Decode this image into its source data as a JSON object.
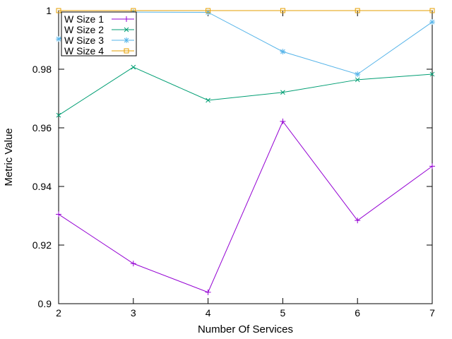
{
  "chart_data": {
    "type": "line",
    "title": "",
    "xlabel": "Number Of Services",
    "ylabel": "Metric Value",
    "x": [
      2,
      3,
      4,
      5,
      6,
      7
    ],
    "xlim": [
      2,
      7
    ],
    "ylim": [
      0.9,
      1.0
    ],
    "xticks": [
      2,
      3,
      4,
      5,
      6,
      7
    ],
    "yticks": [
      0.9,
      0.92,
      0.94,
      0.96,
      0.98,
      1.0
    ],
    "ytick_labels": [
      "0.9",
      "0.92",
      "0.94",
      "0.96",
      "0.98",
      "1"
    ],
    "grid": false,
    "legend_position": "top-left",
    "series": [
      {
        "name": "W Size 1",
        "marker": "plus",
        "color": "#9400d3",
        "values": [
          0.9305,
          0.9137,
          0.9039,
          0.9622,
          0.9284,
          0.9469
        ]
      },
      {
        "name": "W Size 2",
        "marker": "x",
        "color": "#009e73",
        "values": [
          0.9643,
          0.9807,
          0.9694,
          0.9721,
          0.9764,
          0.9783
        ]
      },
      {
        "name": "W Size 3",
        "marker": "star",
        "color": "#56b4e9",
        "values": [
          0.9903,
          0.9995,
          0.9994,
          0.986,
          0.9783,
          0.9961
        ]
      },
      {
        "name": "W Size 4",
        "marker": "square",
        "color": "#e69f00",
        "values": [
          1.0,
          1.0,
          1.0,
          1.0,
          1.0,
          1.0
        ]
      }
    ]
  }
}
